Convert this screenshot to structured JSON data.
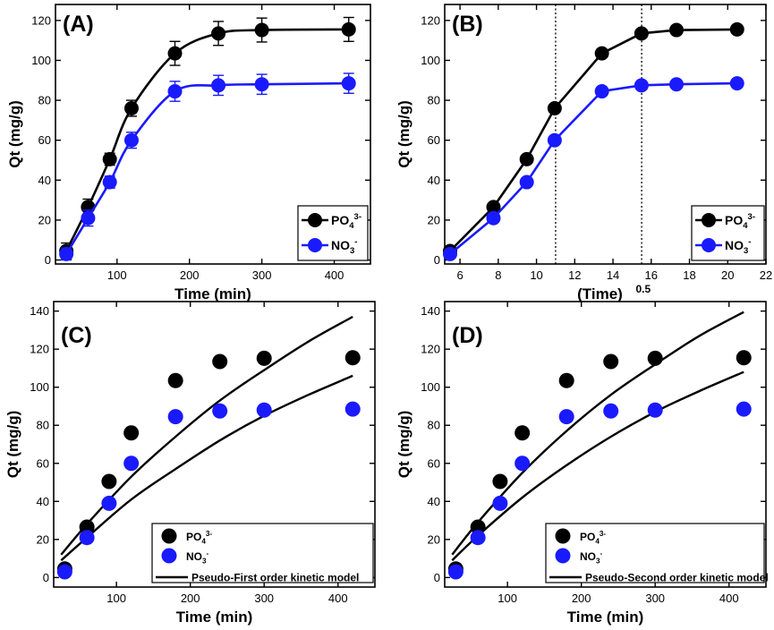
{
  "figure": {
    "panels": [
      {
        "title": "(A)",
        "xlabel": "Time (min)",
        "ylabel": "Qt (mg/g)",
        "legend": {
          "series": [
            {
              "base": "PO",
              "sub": "4",
              "sup": "3-"
            },
            {
              "base": "NO",
              "sub": "3",
              "sup": "-"
            }
          ]
        }
      },
      {
        "title": "(B)",
        "xlabel": "(Time)",
        "xlabel_sup": "0.5",
        "ylabel": "Qt (mg/g)",
        "legend": {
          "series": [
            {
              "base": "PO",
              "sub": "4",
              "sup": "3-"
            },
            {
              "base": "NO",
              "sub": "3",
              "sup": "-"
            }
          ]
        }
      },
      {
        "title": "(C)",
        "xlabel": "Time (min)",
        "ylabel": "Qt (mg/g)",
        "legend": {
          "series": [
            {
              "base": "PO",
              "sub": "4",
              "sup": "3-"
            },
            {
              "base": "NO",
              "sub": "3",
              "sup": "-"
            }
          ],
          "model": "Pseudo-First order kinetic model"
        }
      },
      {
        "title": "(D)",
        "xlabel": "Time (min)",
        "ylabel": "Qt (mg/g)",
        "legend": {
          "series": [
            {
              "base": "PO",
              "sub": "4",
              "sup": "3-"
            },
            {
              "base": "NO",
              "sub": "3",
              "sup": "-"
            }
          ],
          "model": "Pseudo-Second order kinetic model"
        }
      }
    ]
  },
  "chart_data": [
    {
      "id": "A",
      "type": "line",
      "title": "(A)",
      "xlabel": "Time (min)",
      "ylabel": "Qt (mg/g)",
      "xlim": [
        15,
        450
      ],
      "ylim": [
        -2,
        128
      ],
      "xticks": [
        100,
        200,
        300,
        400
      ],
      "yticks": [
        0,
        20,
        40,
        60,
        80,
        100,
        120
      ],
      "legend_position": "bottom-right",
      "series": [
        {
          "name": "PO43-",
          "color": "#000000",
          "x": [
            30,
            60,
            90,
            120,
            180,
            240,
            300,
            420
          ],
          "y": [
            4.5,
            26.5,
            50.5,
            76,
            103.5,
            113.5,
            115.2,
            115.5
          ],
          "err": [
            4,
            4,
            3,
            4,
            6,
            6,
            6,
            6
          ]
        },
        {
          "name": "NO3-",
          "color": "#1a1aff",
          "x": [
            30,
            60,
            90,
            120,
            180,
            240,
            300,
            420
          ],
          "y": [
            3,
            21,
            39,
            60,
            84.5,
            87.5,
            88,
            88.5
          ],
          "err": [
            3,
            4,
            3,
            4,
            5,
            5,
            5,
            5
          ]
        }
      ]
    },
    {
      "id": "B",
      "type": "line",
      "title": "(B)",
      "xlabel": "(Time)^0.5",
      "ylabel": "Qt (mg/g)",
      "xlim": [
        5.2,
        22
      ],
      "ylim": [
        -2,
        128
      ],
      "xticks": [
        6,
        8,
        10,
        12,
        14,
        16,
        18,
        20,
        22
      ],
      "yticks": [
        0,
        20,
        40,
        60,
        80,
        100,
        120
      ],
      "vlines": [
        11,
        15.5
      ],
      "legend_position": "bottom-right",
      "series": [
        {
          "name": "PO43-",
          "color": "#000000",
          "x": [
            5.48,
            7.75,
            9.49,
            10.95,
            13.42,
            15.49,
            17.32,
            20.49
          ],
          "y": [
            4.5,
            26.5,
            50.5,
            76,
            103.5,
            113.5,
            115.2,
            115.5
          ]
        },
        {
          "name": "NO3-",
          "color": "#1a1aff",
          "x": [
            5.48,
            7.75,
            9.49,
            10.95,
            13.42,
            15.49,
            17.32,
            20.49
          ],
          "y": [
            3,
            21,
            39,
            60,
            84.5,
            87.5,
            88,
            88.5
          ]
        }
      ]
    },
    {
      "id": "C",
      "type": "scatter",
      "title": "(C)",
      "xlabel": "Time (min)",
      "ylabel": "Qt (mg/g)",
      "xlim": [
        15,
        450
      ],
      "ylim": [
        -5,
        145
      ],
      "xticks": [
        100,
        200,
        300,
        400
      ],
      "yticks": [
        0,
        20,
        40,
        60,
        80,
        100,
        120,
        140
      ],
      "legend_position": "bottom-right",
      "series": [
        {
          "name": "PO43-",
          "color": "#000000",
          "x": [
            30,
            60,
            90,
            120,
            180,
            240,
            300,
            420
          ],
          "y": [
            4.5,
            26.5,
            50.5,
            76,
            103.5,
            113.5,
            115.2,
            115.5
          ]
        },
        {
          "name": "NO3-",
          "color": "#1a1aff",
          "x": [
            30,
            60,
            90,
            120,
            180,
            240,
            300,
            420
          ],
          "y": [
            3,
            21,
            39,
            60,
            84.5,
            87.5,
            88,
            88.5
          ]
        }
      ],
      "model": {
        "name": "Pseudo-First order kinetic model",
        "color": "#000000",
        "x": [
          25,
          60,
          120,
          180,
          240,
          300,
          360,
          420
        ],
        "curves": [
          [
            12,
            28,
            53,
            74,
            93,
            109,
            124,
            137
          ],
          [
            9,
            21,
            41,
            57,
            72,
            85,
            96,
            106
          ]
        ]
      }
    },
    {
      "id": "D",
      "type": "scatter",
      "title": "(D)",
      "xlabel": "Time (min)",
      "ylabel": "Qt (mg/g)",
      "xlim": [
        15,
        450
      ],
      "ylim": [
        -5,
        145
      ],
      "xticks": [
        100,
        200,
        300,
        400
      ],
      "yticks": [
        0,
        20,
        40,
        60,
        80,
        100,
        120,
        140
      ],
      "legend_position": "bottom-right",
      "series": [
        {
          "name": "PO43-",
          "color": "#000000",
          "x": [
            30,
            60,
            90,
            120,
            180,
            240,
            300,
            420
          ],
          "y": [
            4.5,
            26.5,
            50.5,
            76,
            103.5,
            113.5,
            115.2,
            115.5
          ]
        },
        {
          "name": "NO3-",
          "color": "#1a1aff",
          "x": [
            30,
            60,
            90,
            120,
            180,
            240,
            300,
            420
          ],
          "y": [
            3,
            21,
            39,
            60,
            84.5,
            87.5,
            88,
            88.5
          ]
        }
      ],
      "model": {
        "name": "Pseudo-Second order kinetic model",
        "color": "#000000",
        "x": [
          25,
          60,
          120,
          180,
          240,
          300,
          360,
          420
        ],
        "curves": [
          [
            12,
            29,
            55,
            77,
            96,
            112,
            127,
            139.5
          ],
          [
            9,
            22,
            42,
            59,
            74,
            87,
            98,
            108
          ]
        ]
      }
    }
  ]
}
